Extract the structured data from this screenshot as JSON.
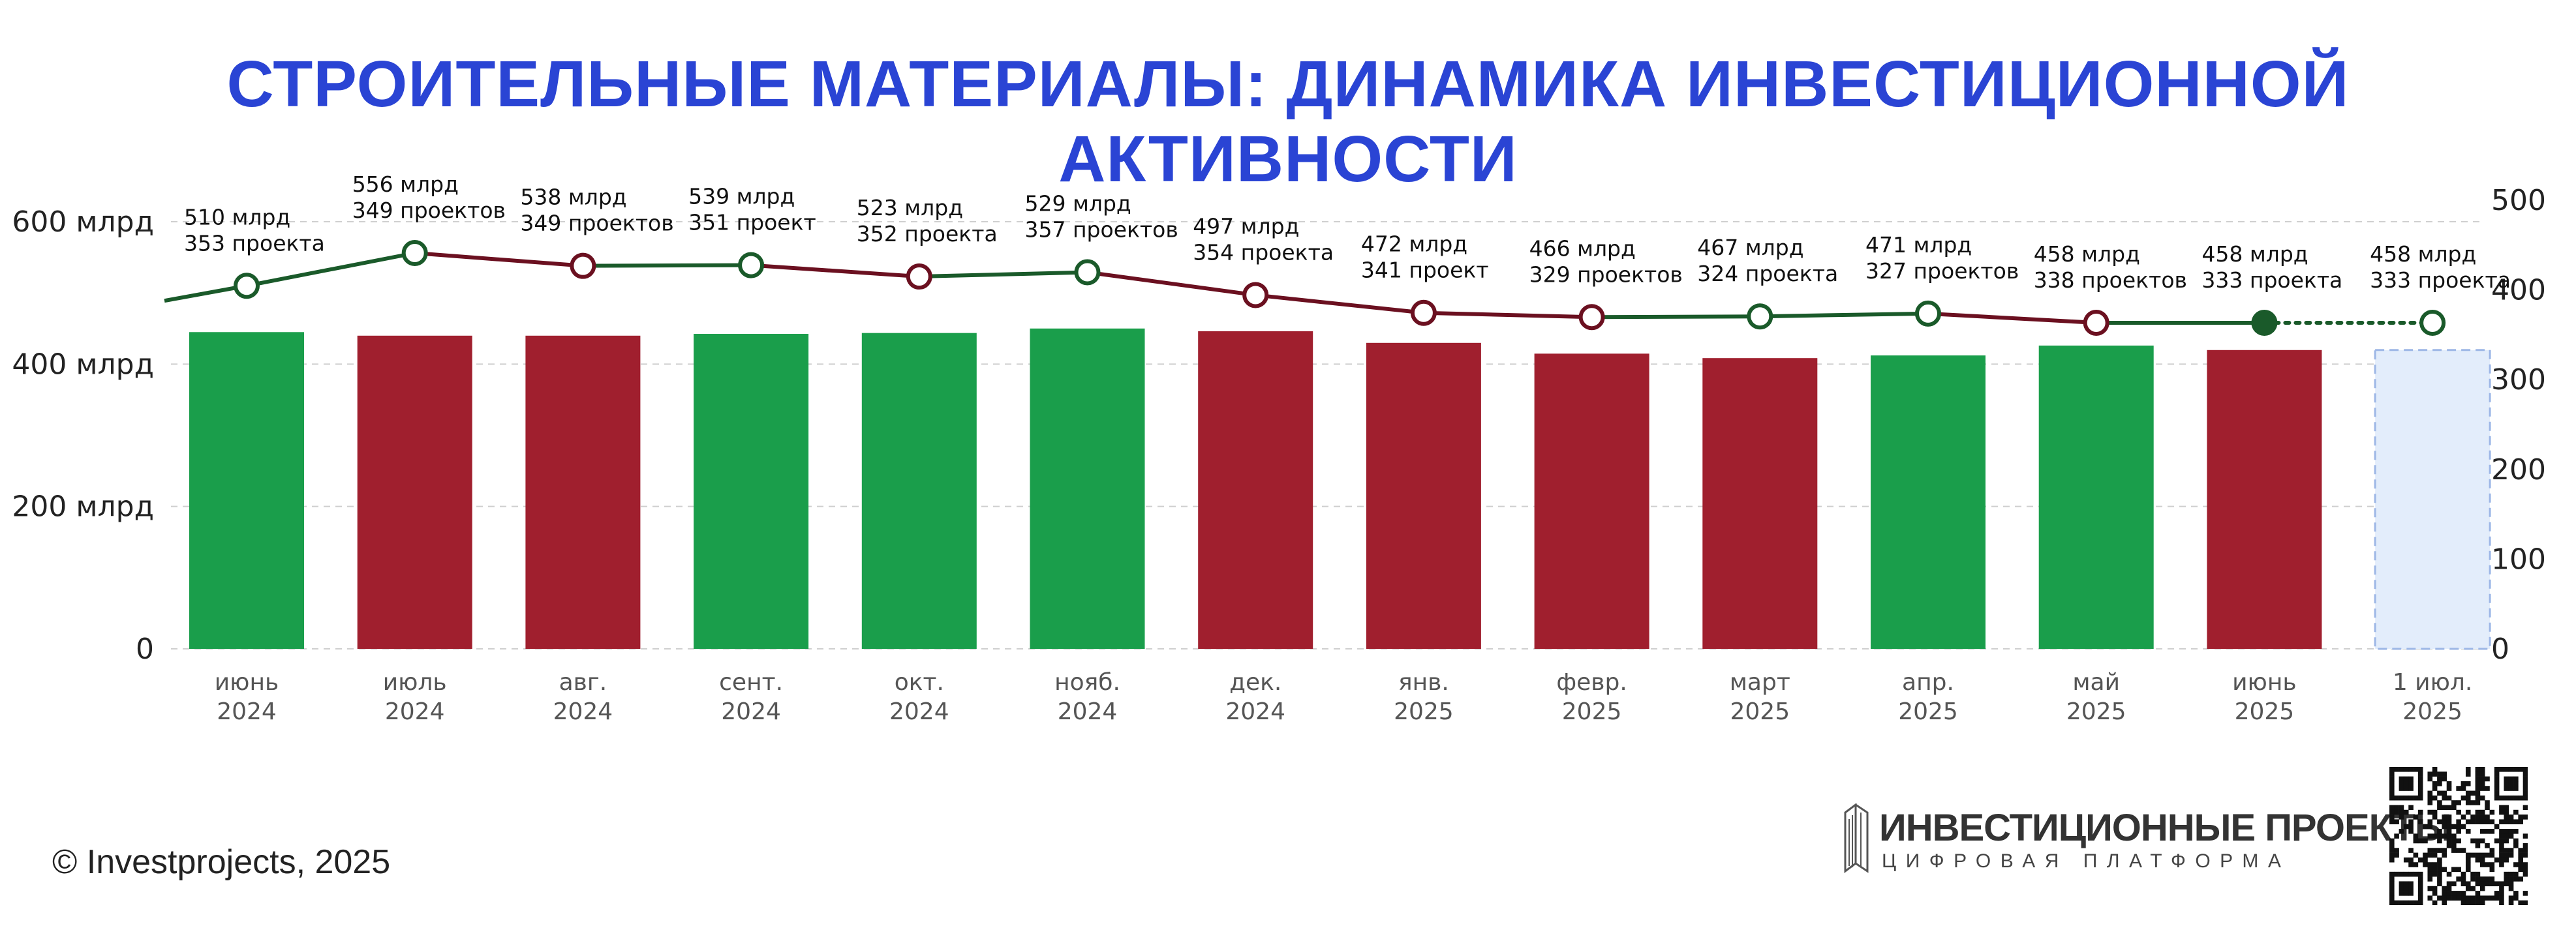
{
  "title": "СТРОИТЕЛЬНЫЕ МАТЕРИАЛЫ: ДИНАМИКА ИНВЕСТИЦИОННОЙ АКТИВНОСТИ",
  "footer": {
    "copyright": "© Investprojects, 2025",
    "logo_name": "ИНВЕСТИЦИОННЫЕ ПРОЕКТЫ",
    "logo_subtitle": "ЦИФРОВАЯ ПЛАТФОРМА"
  },
  "colors": {
    "title": "#2a44d4",
    "green": "#1a9e4b",
    "red": "#a01f2e",
    "line_green": "#1a5a2a",
    "line_red": "#6b1020",
    "forecast_fill": "#e3edfb",
    "forecast_stroke": "#9db7e6"
  },
  "chart_data": {
    "type": "bar",
    "categories": [
      [
        "июнь",
        "2024"
      ],
      [
        "июль",
        "2024"
      ],
      [
        "авг.",
        "2024"
      ],
      [
        "сент.",
        "2024"
      ],
      [
        "окт.",
        "2024"
      ],
      [
        "нояб.",
        "2024"
      ],
      [
        "дек.",
        "2024"
      ],
      [
        "янв.",
        "2025"
      ],
      [
        "февр.",
        "2025"
      ],
      [
        "март",
        "2025"
      ],
      [
        "апр.",
        "2025"
      ],
      [
        "май",
        "2025"
      ],
      [
        "июнь",
        "2025"
      ],
      [
        "1 июл.",
        "2025"
      ]
    ],
    "left_axis": {
      "ylim": [
        0,
        600
      ],
      "ticks": [
        0,
        200,
        400,
        600
      ],
      "tick_labels": [
        "0",
        "200 млрд",
        "400 млрд",
        "600 млрд"
      ]
    },
    "right_axis": {
      "ylim": [
        0,
        500
      ],
      "ticks": [
        0,
        100,
        200,
        300,
        400,
        500
      ],
      "tick_labels": [
        "0",
        "100",
        "200",
        "300",
        "400",
        "500"
      ]
    },
    "series": [
      {
        "kind": "bar",
        "axis": "right",
        "values": [
          353,
          349,
          349,
          351,
          352,
          357,
          354,
          341,
          329,
          324,
          327,
          338,
          333,
          333
        ],
        "colors": [
          "green",
          "red",
          "red",
          "green",
          "green",
          "green",
          "red",
          "red",
          "red",
          "red",
          "green",
          "green",
          "red",
          "forecast"
        ]
      },
      {
        "kind": "line",
        "axis": "left",
        "values": [
          510,
          556,
          538,
          539,
          523,
          529,
          497,
          472,
          466,
          467,
          471,
          458,
          458,
          458
        ],
        "segment_colors": [
          "line_green",
          "line_red",
          "line_green",
          "line_red",
          "line_green",
          "line_red",
          "line_red",
          "line_red",
          "line_green",
          "line_green",
          "line_red",
          "line_green",
          "line_green_dotted"
        ],
        "marker_colors": [
          "line_green",
          "line_green",
          "line_red",
          "line_green",
          "line_red",
          "line_green",
          "line_red",
          "line_red",
          "line_red",
          "line_green",
          "line_green",
          "line_red",
          "line_green_filled",
          "line_green"
        ],
        "start_stub_value": 489
      }
    ],
    "data_labels": [
      [
        "510 млрд",
        "353 проекта"
      ],
      [
        "556 млрд",
        "349 проектов"
      ],
      [
        "538 млрд",
        "349 проектов"
      ],
      [
        "539 млрд",
        "351 проект"
      ],
      [
        "523 млрд",
        "352 проекта"
      ],
      [
        "529 млрд",
        "357 проектов"
      ],
      [
        "497 млрд",
        "354 проекта"
      ],
      [
        "472 млрд",
        "341 проект"
      ],
      [
        "466 млрд",
        "329 проектов"
      ],
      [
        "467 млрд",
        "324 проекта"
      ],
      [
        "471 млрд",
        "327 проектов"
      ],
      [
        "458 млрд",
        "338 проектов"
      ],
      [
        "458 млрд",
        "333 проекта"
      ],
      [
        "458 млрд",
        "333 проекта"
      ]
    ],
    "grid": true,
    "legend": "none"
  }
}
